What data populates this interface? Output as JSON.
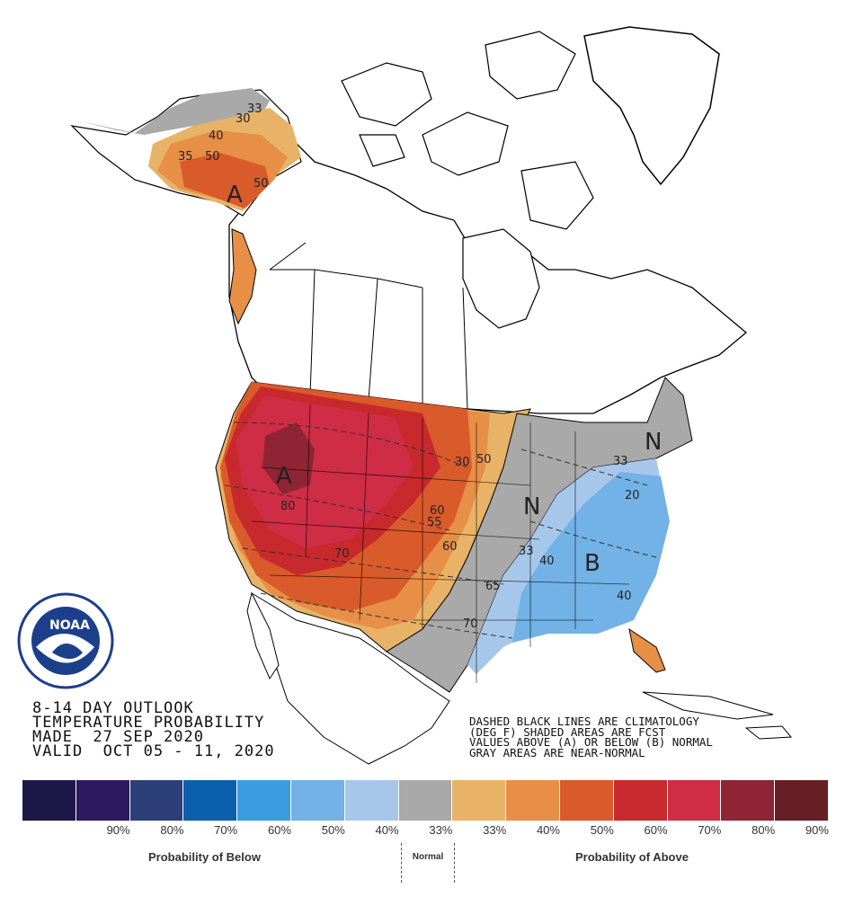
{
  "title": {
    "line1": "8-14 DAY OUTLOOK",
    "line2": "TEMPERATURE PROBABILITY",
    "line3": "MADE  27 SEP 2020",
    "line4": "VALID  OCT 05 - 11, 2020"
  },
  "notes": {
    "line1": "DASHED BLACK LINES ARE CLIMATOLOGY",
    "line2": "(DEG F) SHADED AREAS ARE FCST",
    "line3": "VALUES ABOVE (A) OR BELOW (B) NORMAL",
    "line4": "GRAY AREAS ARE NEAR-NORMAL"
  },
  "logo": {
    "text": "NOAA",
    "agency": "NATIONAL OCEANIC AND ATMOSPHERIC ADMINISTRATION",
    "dept": "U.S. DEPARTMENT OF COMMERCE"
  },
  "map_labels": {
    "above_letter": "A",
    "below_letter": "B",
    "normal_letter": "N",
    "contours": [
      "30",
      "33",
      "40",
      "35",
      "50",
      "50",
      "80",
      "70",
      "60",
      "55",
      "60",
      "30",
      "50",
      "65",
      "70",
      "33",
      "40",
      "40",
      "33",
      "20"
    ]
  },
  "legend": {
    "colors": [
      "#1e1848",
      "#2b1b5e",
      "#2c3f78",
      "#0b5fad",
      "#3a9de0",
      "#72b2e6",
      "#a7c7ea",
      "#a9a9a9",
      "#e8b366",
      "#e78e47",
      "#d95a2b",
      "#c8292c",
      "#cf2c45",
      "#8e2434",
      "#671e25"
    ],
    "ticks": [
      "90%",
      "80%",
      "70%",
      "60%",
      "50%",
      "40%",
      "33%",
      "33%",
      "40%",
      "50%",
      "60%",
      "70%",
      "80%",
      "90%"
    ],
    "below_caption": "Probability of Below",
    "normal_caption": "Normal",
    "above_caption": "Probability of Above"
  }
}
